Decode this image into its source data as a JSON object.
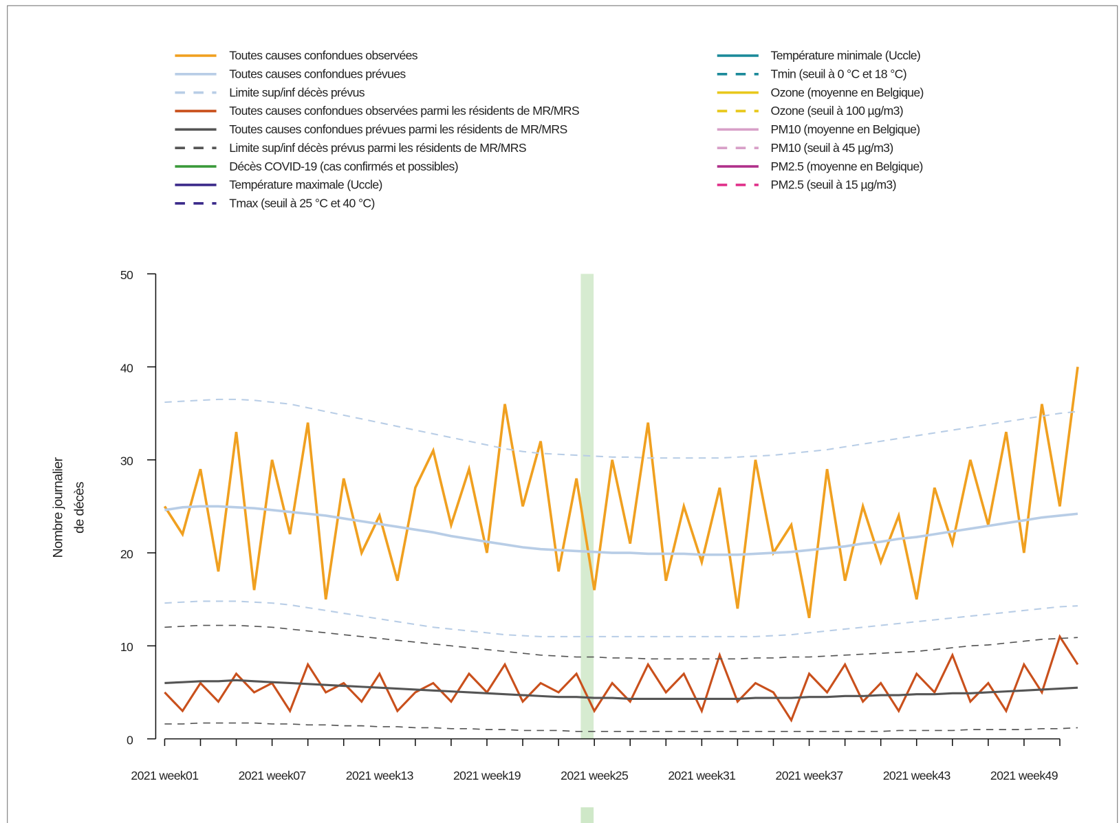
{
  "chart_data": {
    "type": "line",
    "ylabel": [
      "Nombre journalier",
      "de décès"
    ],
    "x": [
      1,
      2,
      3,
      4,
      5,
      6,
      7,
      8,
      9,
      10,
      11,
      12,
      13,
      14,
      15,
      16,
      17,
      18,
      19,
      20,
      21,
      22,
      23,
      24,
      25,
      26,
      27,
      28,
      29,
      30,
      31,
      32,
      33,
      34,
      35,
      36,
      37,
      38,
      39,
      40,
      41,
      42,
      43,
      44,
      45,
      46,
      47,
      48,
      49,
      50,
      51,
      52
    ],
    "xlim": [
      0.5,
      52.66
    ],
    "xticks": [
      {
        "value": 1,
        "label": "2021 week01"
      },
      {
        "value": 7,
        "label": "2021 week07"
      },
      {
        "value": 13,
        "label": "2021 week13"
      },
      {
        "value": 19,
        "label": "2021 week19"
      },
      {
        "value": 25,
        "label": "2021 week25"
      },
      {
        "value": 31,
        "label": "2021 week31"
      },
      {
        "value": 37,
        "label": "2021 week37"
      },
      {
        "value": 43,
        "label": "2021 week43"
      },
      {
        "value": 49,
        "label": "2021 week49"
      }
    ],
    "xminorticks": [
      3,
      5,
      9,
      11,
      15,
      17,
      21,
      23,
      27,
      29,
      33,
      35,
      39,
      41,
      45,
      47,
      51
    ],
    "ylim": [
      0,
      50
    ],
    "yticks": [
      0,
      10,
      20,
      30,
      40,
      50
    ],
    "highlight_x": 24.6,
    "highlight_color": "#cfe8c8",
    "series": [
      {
        "name": "Toutes causes confondues observées",
        "color": "#f0a020",
        "dash": false,
        "width": 3.5,
        "values": [
          25,
          22,
          29,
          18,
          33,
          16,
          30,
          22,
          34,
          15,
          28,
          20,
          24,
          17,
          27,
          31,
          23,
          29,
          20,
          36,
          25,
          32,
          18,
          28,
          16,
          30,
          21,
          34,
          17,
          25,
          19,
          27,
          14,
          30,
          20,
          23,
          13,
          29,
          17,
          25,
          19,
          24,
          15,
          27,
          21,
          30,
          23,
          33,
          20,
          36,
          25,
          40
        ]
      },
      {
        "name": "Toutes causes confondues prévues",
        "color": "#b8cde6",
        "dash": false,
        "width": 3.5,
        "values": [
          24.6,
          24.9,
          25,
          25,
          24.9,
          24.8,
          24.6,
          24.4,
          24.2,
          24,
          23.7,
          23.4,
          23.1,
          22.8,
          22.5,
          22.2,
          21.8,
          21.5,
          21.2,
          20.9,
          20.6,
          20.4,
          20.3,
          20.2,
          20.1,
          20,
          20,
          19.9,
          19.9,
          19.9,
          19.8,
          19.8,
          19.8,
          19.9,
          20,
          20.1,
          20.3,
          20.5,
          20.7,
          21,
          21.2,
          21.5,
          21.7,
          22,
          22.3,
          22.6,
          22.9,
          23.2,
          23.5,
          23.8,
          24,
          24.2
        ]
      },
      {
        "name": "Limite sup/inf décès prévus",
        "color": "#b8cde6",
        "dash": true,
        "width": 2,
        "values": [
          36.2,
          36.3,
          36.4,
          36.5,
          36.5,
          36.4,
          36.2,
          36,
          35.6,
          35.2,
          34.8,
          34.4,
          34,
          33.6,
          33.2,
          32.8,
          32.4,
          32,
          31.6,
          31.2,
          30.9,
          30.7,
          30.6,
          30.5,
          30.4,
          30.3,
          30.3,
          30.2,
          30.2,
          30.2,
          30.2,
          30.2,
          30.3,
          30.4,
          30.5,
          30.7,
          30.9,
          31.1,
          31.4,
          31.7,
          32,
          32.3,
          32.6,
          32.9,
          33.2,
          33.5,
          33.8,
          34.1,
          34.4,
          34.7,
          35,
          35.2
        ],
        "values_lower": [
          14.6,
          14.7,
          14.8,
          14.8,
          14.8,
          14.7,
          14.6,
          14.4,
          14.1,
          13.8,
          13.5,
          13.2,
          12.9,
          12.6,
          12.3,
          12,
          11.8,
          11.6,
          11.4,
          11.2,
          11.1,
          11,
          11,
          11,
          11,
          11,
          11,
          11,
          11,
          11,
          11,
          11,
          11,
          11,
          11.1,
          11.2,
          11.4,
          11.6,
          11.8,
          12,
          12.2,
          12.4,
          12.6,
          12.8,
          13,
          13.2,
          13.4,
          13.6,
          13.8,
          14,
          14.2,
          14.3
        ]
      },
      {
        "name": "Toutes causes confondues observées parmi les résidents de MR/MRS",
        "color": "#c9501c",
        "dash": false,
        "width": 3,
        "values": [
          5,
          3,
          6,
          4,
          7,
          5,
          6,
          3,
          8,
          5,
          6,
          4,
          7,
          3,
          5,
          6,
          4,
          7,
          5,
          8,
          4,
          6,
          5,
          7,
          3,
          6,
          4,
          8,
          5,
          7,
          3,
          9,
          4,
          6,
          5,
          2,
          7,
          5,
          8,
          4,
          6,
          3,
          7,
          5,
          9,
          4,
          6,
          3,
          8,
          5,
          11,
          8
        ]
      },
      {
        "name": "Toutes causes confondues prévues parmi les résidents de MR/MRS",
        "color": "#555555",
        "dash": false,
        "width": 3,
        "values": [
          6,
          6.1,
          6.2,
          6.2,
          6.3,
          6.2,
          6.1,
          6,
          5.9,
          5.8,
          5.7,
          5.6,
          5.5,
          5.4,
          5.3,
          5.2,
          5.1,
          5,
          4.9,
          4.8,
          4.7,
          4.6,
          4.5,
          4.5,
          4.4,
          4.4,
          4.3,
          4.3,
          4.3,
          4.3,
          4.3,
          4.3,
          4.3,
          4.4,
          4.4,
          4.4,
          4.5,
          4.5,
          4.6,
          4.6,
          4.7,
          4.7,
          4.8,
          4.8,
          4.9,
          4.9,
          5,
          5.1,
          5.2,
          5.3,
          5.4,
          5.5
        ]
      },
      {
        "name": "Limite sup/inf décès prévus parmi les résidents de MR/MRS",
        "color": "#555555",
        "dash": true,
        "width": 1.6,
        "values": [
          12,
          12.1,
          12.2,
          12.2,
          12.2,
          12.1,
          12,
          11.8,
          11.6,
          11.4,
          11.2,
          11,
          10.8,
          10.6,
          10.4,
          10.2,
          10,
          9.8,
          9.6,
          9.4,
          9.2,
          9,
          8.9,
          8.8,
          8.8,
          8.7,
          8.7,
          8.6,
          8.6,
          8.6,
          8.6,
          8.6,
          8.6,
          8.7,
          8.7,
          8.8,
          8.8,
          8.9,
          9,
          9.1,
          9.2,
          9.3,
          9.4,
          9.6,
          9.8,
          10,
          10.1,
          10.3,
          10.5,
          10.7,
          10.8,
          10.9
        ],
        "values_lower": [
          1.6,
          1.6,
          1.7,
          1.7,
          1.7,
          1.7,
          1.6,
          1.6,
          1.5,
          1.5,
          1.4,
          1.4,
          1.3,
          1.3,
          1.2,
          1.2,
          1.1,
          1.1,
          1,
          1,
          0.9,
          0.9,
          0.9,
          0.8,
          0.8,
          0.8,
          0.8,
          0.8,
          0.8,
          0.8,
          0.8,
          0.8,
          0.8,
          0.8,
          0.8,
          0.8,
          0.8,
          0.8,
          0.8,
          0.8,
          0.8,
          0.9,
          0.9,
          0.9,
          0.9,
          1,
          1,
          1,
          1,
          1.1,
          1.1,
          1.2
        ]
      },
      {
        "name": "Décès COVID-19 (cas confirmés et possibles)",
        "color": "#3a9a3a",
        "dash": false
      },
      {
        "name": "Température maximale (Uccle)",
        "color": "#3b2a8a",
        "dash": false
      },
      {
        "name": "Tmax (seuil à 25 °C et 40 °C)",
        "color": "#3b2a8a",
        "dash": true
      },
      {
        "name": "Température minimale (Uccle)",
        "color": "#1c8a9a",
        "dash": false
      },
      {
        "name": "Tmin (seuil à 0 °C et 18 °C)",
        "color": "#1c8a9a",
        "dash": true
      },
      {
        "name": "Ozone (moyenne en Belgique)",
        "color": "#e8c81c",
        "dash": false
      },
      {
        "name": "Ozone (seuil à 100 µg/m3)",
        "color": "#e8c81c",
        "dash": true
      },
      {
        "name": "PM10 (moyenne en Belgique)",
        "color": "#d8a0c8",
        "dash": false
      },
      {
        "name": "PM10 (seuil à 45 µg/m3)",
        "color": "#d8a0c8",
        "dash": true
      },
      {
        "name": "PM2.5 (moyenne en Belgique)",
        "color": "#b0308a",
        "dash": false
      },
      {
        "name": "PM2.5  (seuil à 15 µg/m3)",
        "color": "#e0308a",
        "dash": true
      }
    ]
  }
}
